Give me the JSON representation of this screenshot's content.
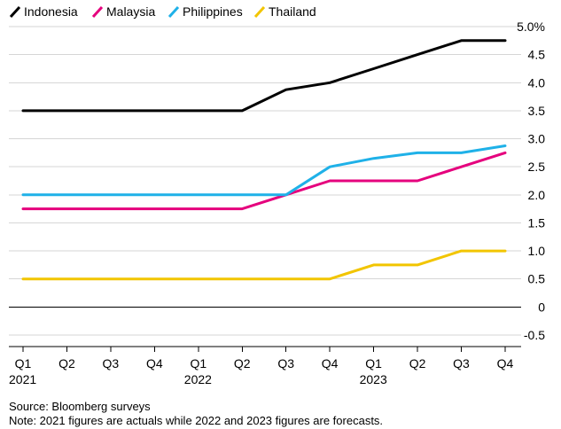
{
  "chart_data": {
    "type": "line",
    "title": "",
    "xlabel": "",
    "ylabel": "",
    "ylim": [
      -0.5,
      5.0
    ],
    "yticks": [
      5.0,
      4.5,
      4.0,
      3.5,
      3.0,
      2.5,
      2.0,
      1.5,
      1.0,
      0.5,
      0,
      -0.5
    ],
    "ytick_labels": [
      "5.0%",
      "4.5",
      "4.0",
      "3.5",
      "3.0",
      "2.5",
      "2.0",
      "1.5",
      "1.0",
      "0.5",
      "0",
      "-0.5"
    ],
    "grid": true,
    "legend_position": "top-left",
    "categories": [
      "Q1",
      "Q2",
      "Q3",
      "Q4",
      "Q1",
      "Q2",
      "Q3",
      "Q4",
      "Q1",
      "Q2",
      "Q3",
      "Q4"
    ],
    "year_labels": [
      {
        "index": 0,
        "label": "2021"
      },
      {
        "index": 4,
        "label": "2022"
      },
      {
        "index": 8,
        "label": "2023"
      }
    ],
    "series": [
      {
        "name": "Indonesia",
        "color": "#000000",
        "values": [
          3.5,
          3.5,
          3.5,
          3.5,
          3.5,
          3.5,
          3.875,
          4.0,
          4.25,
          4.5,
          4.75,
          4.75
        ]
      },
      {
        "name": "Malaysia",
        "color": "#e5007d",
        "values": [
          1.75,
          1.75,
          1.75,
          1.75,
          1.75,
          1.75,
          2.0,
          2.25,
          2.25,
          2.25,
          2.5,
          2.75
        ]
      },
      {
        "name": "Philippines",
        "color": "#1fb1e8",
        "values": [
          2.0,
          2.0,
          2.0,
          2.0,
          2.0,
          2.0,
          2.0,
          2.5,
          2.65,
          2.75,
          2.75,
          2.875
        ]
      },
      {
        "name": "Thailand",
        "color": "#f2c500",
        "values": [
          0.5,
          0.5,
          0.5,
          0.5,
          0.5,
          0.5,
          0.5,
          0.5,
          0.75,
          0.75,
          1.0,
          1.0
        ]
      }
    ]
  },
  "footer": {
    "source": "Source: Bloomberg surveys",
    "note": "Note: 2021 figures are actuals while 2022 and 2023 figures are forecasts."
  }
}
